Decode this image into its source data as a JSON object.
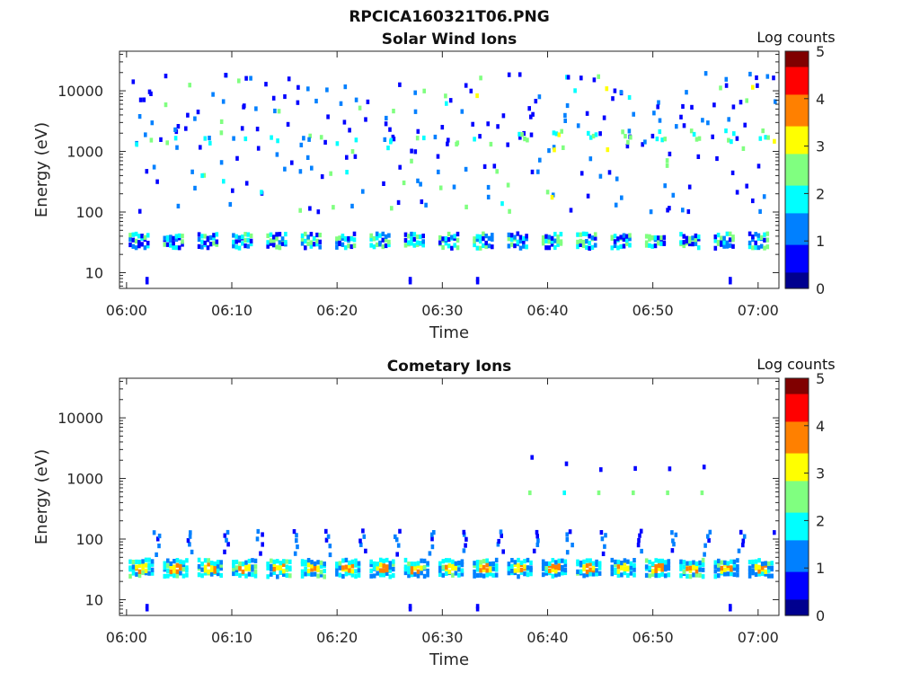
{
  "figure_title": "RPCICA160321T06.PNG",
  "colormap": [
    "#00008f",
    "#0000ff",
    "#0080ff",
    "#00ffff",
    "#80ff80",
    "#ffff00",
    "#ff8000",
    "#ff0000",
    "#800000"
  ],
  "chart_data": [
    {
      "type": "heatmap",
      "title": "Solar Wind Ions",
      "xlabel": "Time",
      "ylabel": "Energy (eV)",
      "y_scale": "log",
      "ylim": [
        5.5,
        45000
      ],
      "x_ticks": [
        "06:00",
        "06:10",
        "06:20",
        "06:30",
        "06:40",
        "06:50",
        "07:00"
      ],
      "y_ticks": [
        "10",
        "100",
        "1000",
        "10000"
      ],
      "colorbar": {
        "label": "Log counts",
        "ticks": [
          "0",
          "1",
          "2",
          "3",
          "4",
          "5"
        ],
        "range": [
          0,
          5
        ]
      },
      "description": "Periodic bursts every ~3 min near 30-40 eV; sparse dots 100-20000 eV; brighter bursts near 1000-2000 eV after 06:35"
    },
    {
      "type": "heatmap",
      "title": "Cometary Ions",
      "xlabel": "Time",
      "ylabel": "Energy (eV)",
      "y_scale": "log",
      "ylim": [
        5.5,
        45000
      ],
      "x_ticks": [
        "06:00",
        "06:10",
        "06:20",
        "06:30",
        "06:40",
        "06:50",
        "07:00"
      ],
      "y_ticks": [
        "10",
        "100",
        "1000",
        "10000"
      ],
      "colorbar": {
        "label": "Log counts",
        "ticks": [
          "0",
          "1",
          "2",
          "3",
          "4",
          "5"
        ],
        "range": [
          0,
          5
        ]
      },
      "description": "Periodic bursts every ~3 min at 25-45 eV with log counts up to ~4; tails to ~150 eV; sparse points near 500-2500 eV"
    }
  ]
}
